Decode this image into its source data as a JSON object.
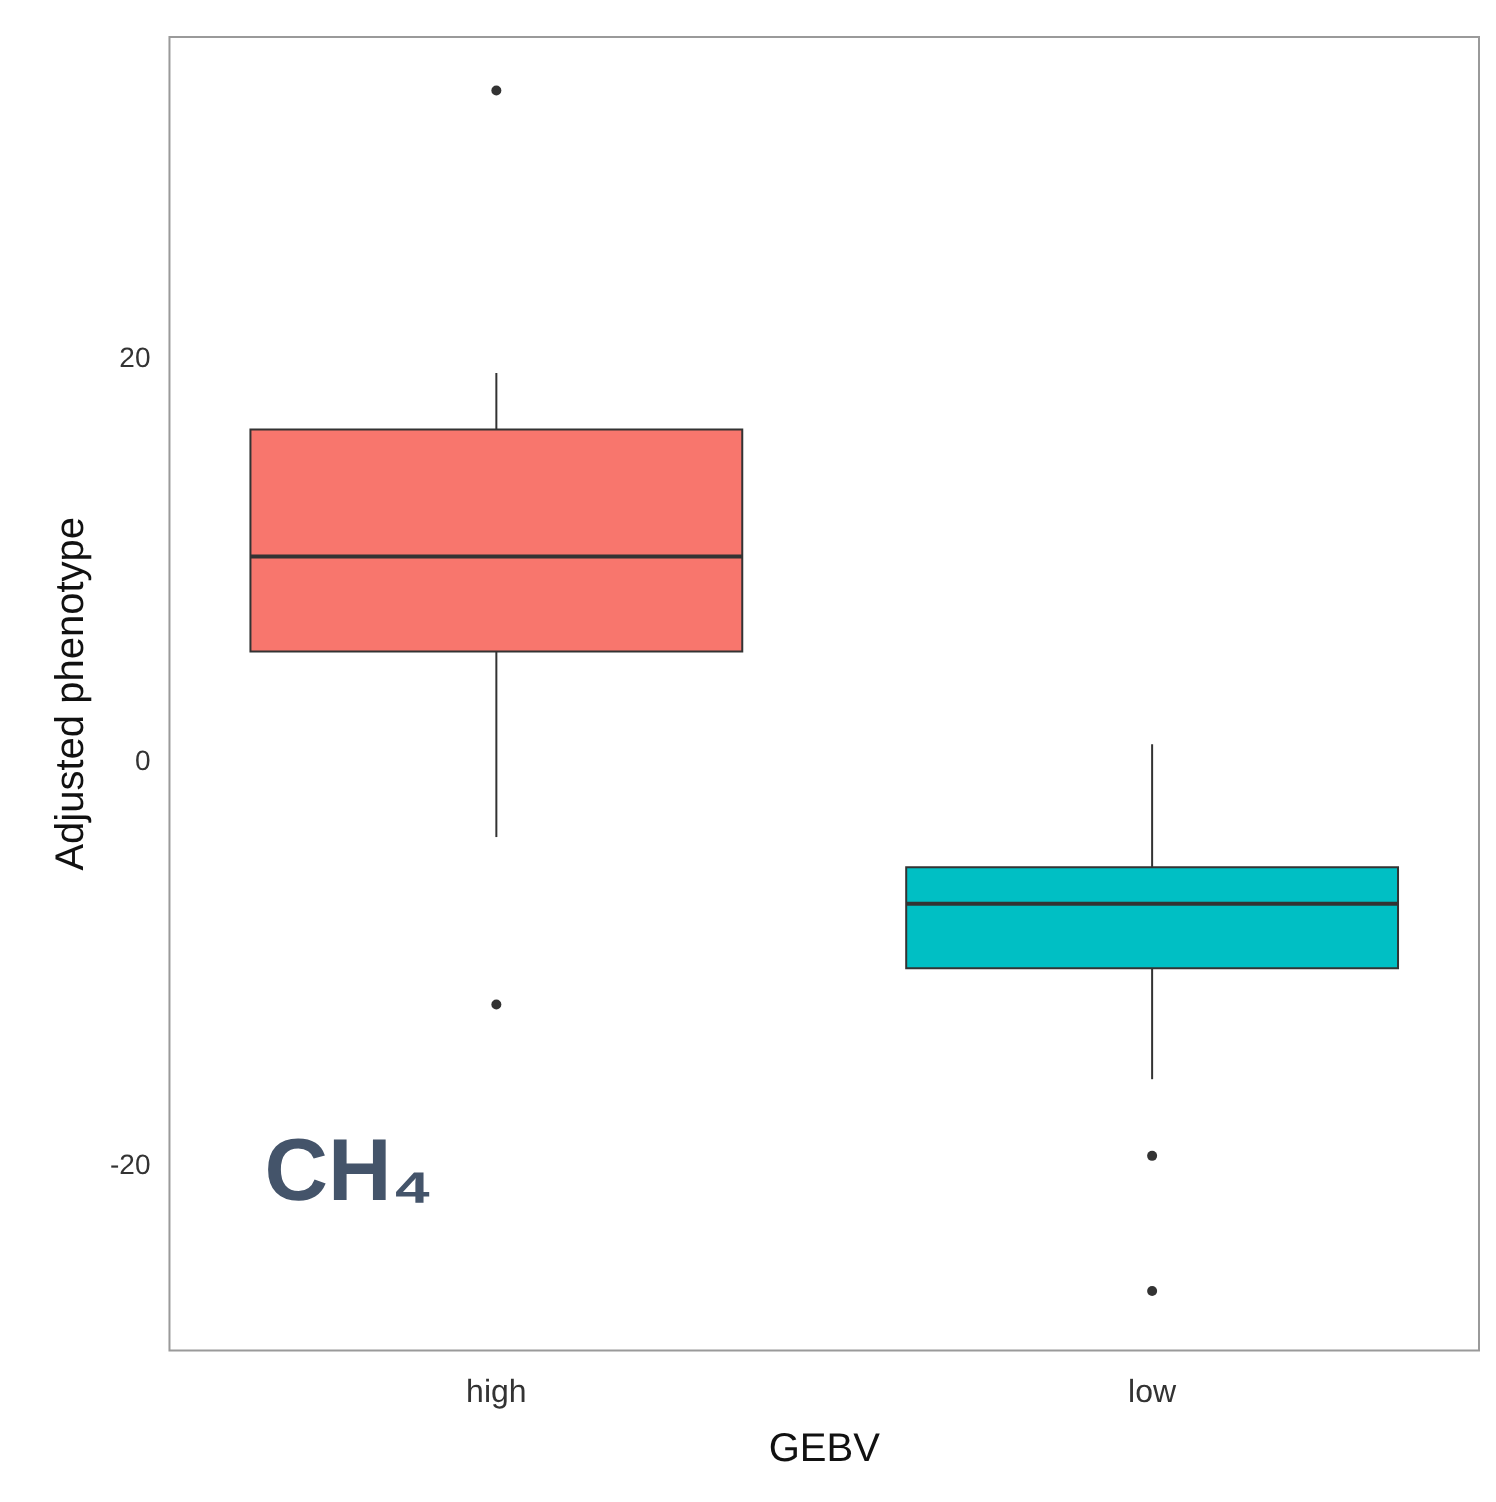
{
  "chart_data": {
    "type": "box",
    "xlabel": "GEBV",
    "ylabel": "Adjusted phenotype",
    "categories": [
      "high",
      "low"
    ],
    "boxes": [
      {
        "low": -3.7,
        "q1": 5.5,
        "median": 10.2,
        "q3": 16.5,
        "high": 19.3,
        "outliers": [
          33.3,
          -12.0
        ]
      },
      {
        "low": -15.7,
        "q1": -10.2,
        "median": -7.0,
        "q3": -5.2,
        "high": 0.9,
        "outliers": [
          -19.5,
          -26.2
        ]
      }
    ],
    "colors": [
      "#f8766d",
      "#00bfc4"
    ],
    "ylim": [
      -29.2,
      36
    ],
    "yticks": [
      -20,
      0,
      20
    ],
    "annotations": [
      "CH₄"
    ]
  }
}
